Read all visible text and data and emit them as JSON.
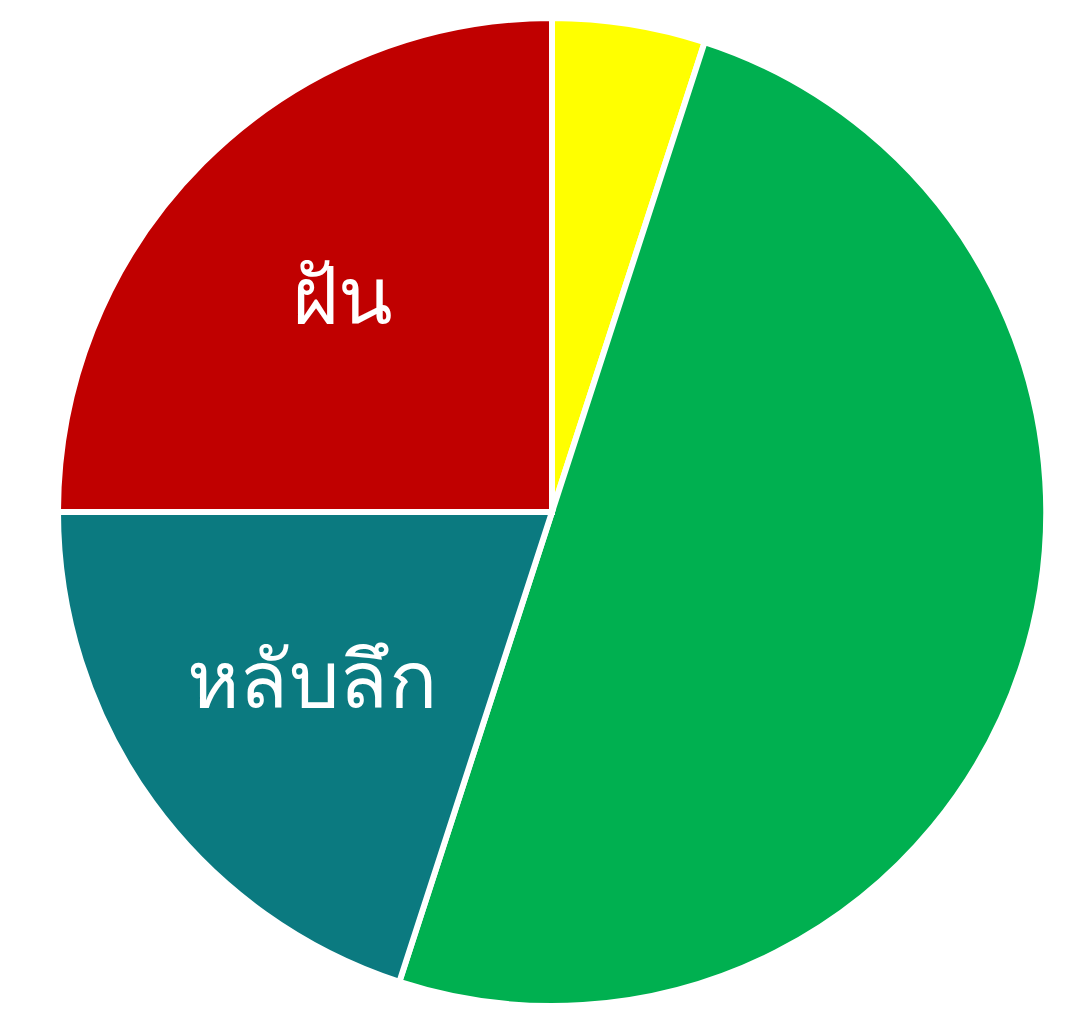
{
  "chart_data": {
    "type": "pie",
    "categories": [
      null,
      null,
      "หลับลึก",
      "ฝัน"
    ],
    "values": [
      5,
      50,
      20,
      25
    ],
    "colors": [
      "#ffff00",
      "#00b050",
      "#0b7a80",
      "#c00000"
    ]
  }
}
